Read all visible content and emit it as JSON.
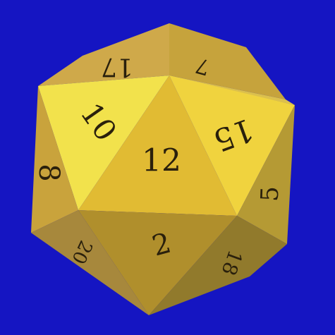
{
  "scene": {
    "background": "#1515c2",
    "object": "d20-die",
    "die_color": "#e6bf3c"
  },
  "faces": [
    {
      "id": "top-left",
      "number": "17",
      "color": "#cfa94a"
    },
    {
      "id": "top-right",
      "number": "7",
      "color": "#c6a33c"
    },
    {
      "id": "upper-left",
      "number": "10",
      "color": "#f2e24c"
    },
    {
      "id": "center",
      "number": "12",
      "color": "#e1bb33"
    },
    {
      "id": "upper-right",
      "number": "15",
      "color": "#f0d33e"
    },
    {
      "id": "left",
      "number": "8",
      "color": "#c9a33c"
    },
    {
      "id": "right",
      "number": "5",
      "color": "#b59a34"
    },
    {
      "id": "bottom-center",
      "number": "2",
      "color": "#b08f2c"
    },
    {
      "id": "bottom-left",
      "number": "20",
      "color": "#a7883c"
    },
    {
      "id": "bottom-right",
      "number": "18",
      "color": "#917a2c"
    }
  ]
}
